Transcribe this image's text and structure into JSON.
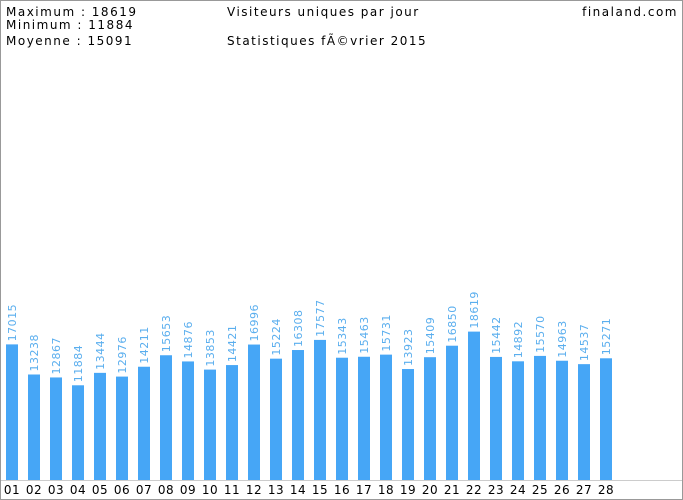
{
  "chart_data": {
    "type": "bar",
    "stats": [
      "Maximum : 18619",
      "Minimum : 11884",
      "Moyenne : 15091"
    ],
    "title": "Visiteurs uniques par jour",
    "subtitle": "Statistiques fÃ©vrier 2015",
    "site": "finaland.com",
    "categories": [
      "01",
      "02",
      "03",
      "04",
      "05",
      "06",
      "07",
      "08",
      "09",
      "10",
      "11",
      "12",
      "13",
      "14",
      "15",
      "16",
      "17",
      "18",
      "19",
      "20",
      "21",
      "22",
      "23",
      "24",
      "25",
      "26",
      "27",
      "28"
    ],
    "values": [
      17015,
      13238,
      12867,
      11884,
      13444,
      12976,
      14211,
      15653,
      14876,
      13853,
      14421,
      16996,
      15224,
      16308,
      17577,
      15343,
      15463,
      15731,
      13923,
      15409,
      16850,
      18619,
      15442,
      14892,
      15570,
      14963,
      14537,
      15271
    ],
    "color": "#46a6f6"
  }
}
